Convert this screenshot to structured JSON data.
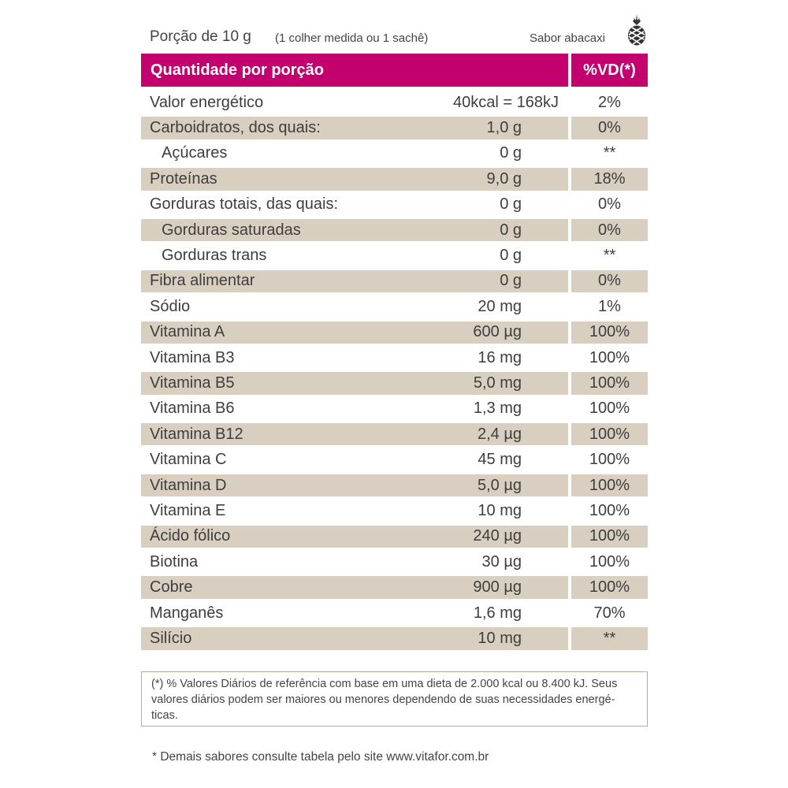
{
  "header": {
    "serving": "Porção de 10 g",
    "serving_note": "(1 colher medida ou 1 sachê)",
    "flavor": "Sabor abacaxi",
    "flavor_icon": "pineapple-icon"
  },
  "table": {
    "heading_main": "Quantidade por porção",
    "heading_vd": "%VD(*)",
    "accent_color": "#c4006e",
    "shade_color": "#d8cfc0",
    "rows": [
      {
        "name": "Valor energético",
        "amount": "40kcal = 168kJ",
        "vd": "2%"
      },
      {
        "name": "Carboidratos, dos quais:",
        "amount": "1,0 g",
        "vd": "0%"
      },
      {
        "name": "Açúcares",
        "amount": "0 g",
        "vd": "**"
      },
      {
        "name": "Proteínas",
        "amount": "9,0 g",
        "vd": "18%"
      },
      {
        "name": "Gorduras totais, das quais:",
        "amount": "0 g",
        "vd": "0%"
      },
      {
        "name": "Gorduras saturadas",
        "amount": "0 g",
        "vd": "0%"
      },
      {
        "name": "Gorduras trans",
        "amount": "0 g",
        "vd": "**"
      },
      {
        "name": "Fibra alimentar",
        "amount": "0 g",
        "vd": "0%"
      },
      {
        "name": "Sódio",
        "amount": "20 mg",
        "vd": "1%"
      },
      {
        "name": "Vitamina A",
        "amount": "600 µg",
        "vd": "100%"
      },
      {
        "name": "Vitamina B3",
        "amount": "16 mg",
        "vd": "100%"
      },
      {
        "name": "Vitamina B5",
        "amount": "5,0 mg",
        "vd": "100%"
      },
      {
        "name": "Vitamina B6",
        "amount": "1,3 mg",
        "vd": "100%"
      },
      {
        "name": "Vitamina B12",
        "amount": "2,4 µg",
        "vd": "100%"
      },
      {
        "name": "Vitamina C",
        "amount": "45 mg",
        "vd": "100%"
      },
      {
        "name": "Vitamina D",
        "amount": "5,0 µg",
        "vd": "100%"
      },
      {
        "name": "Vitamina E",
        "amount": "10 mg",
        "vd": "100%"
      },
      {
        "name": "Ácido fólico",
        "amount": "240 µg",
        "vd": "100%"
      },
      {
        "name": "Biotina",
        "amount": "30 µg",
        "vd": "100%"
      },
      {
        "name": "Cobre",
        "amount": "900 µg",
        "vd": "100%"
      },
      {
        "name": "Manganês",
        "amount": "1,6 mg",
        "vd": "70%"
      },
      {
        "name": "Silício",
        "amount": "10 mg",
        "vd": "**"
      }
    ]
  },
  "footnote": "(*) % Valores Diários de referência com base em uma dieta de 2.000 kcal ou 8.400 kJ. Seus valores diários podem ser maiores ou menores dependendo de suas necessidades energé-ticas.",
  "bottom_note": "* Demais sabores consulte tabela pelo site www.vitafor.com.br"
}
